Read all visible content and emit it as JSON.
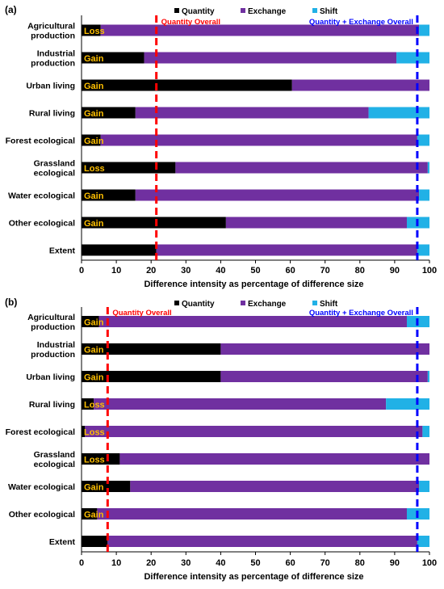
{
  "legend": {
    "quantity_label": "Quantity",
    "exchange_label": "Exchange",
    "shift_label": "Shift"
  },
  "colors": {
    "quantity": "#000000",
    "exchange": "#7030a0",
    "shift": "#21b1e6",
    "quantity_overall_line": "#ff0000",
    "qe_overall_line": "#0000ff",
    "bar_label_text": "#ffc000"
  },
  "chart_data": [
    {
      "panel_label": "(a)",
      "type": "bar",
      "orientation": "horizontal",
      "stacked": true,
      "xlabel": "Difference intensity as percentage of difference size",
      "xlim": [
        0,
        100
      ],
      "xticks": [
        "0",
        "10",
        "20",
        "30",
        "40",
        "50",
        "60",
        "70",
        "80",
        "90",
        "100"
      ],
      "categories": [
        "Agricultural production",
        "Industrial production",
        "Urban living",
        "Rural living",
        "Forest ecological",
        "Grassland ecological",
        "Water ecological",
        "Other ecological",
        "Extent"
      ],
      "bar_labels": [
        "Loss",
        "Gain",
        "Gain",
        "Gain",
        "Gain",
        "Loss",
        "Gain",
        "Gain",
        ""
      ],
      "series": [
        {
          "name": "Quantity",
          "values": [
            5.5,
            18,
            60.5,
            15.5,
            5.5,
            27,
            15.5,
            41.5,
            21.5
          ]
        },
        {
          "name": "Exchange",
          "values": [
            91.5,
            72.5,
            39.5,
            67,
            91,
            72.5,
            81.5,
            52,
            75
          ]
        },
        {
          "name": "Shift",
          "values": [
            3,
            9.5,
            0,
            17.5,
            3.5,
            0.5,
            3,
            6.5,
            3.5
          ]
        }
      ],
      "reference_lines": [
        {
          "label": "Quantity Overall",
          "x": 21.5
        },
        {
          "label": "Quantity + Exchange Overall",
          "x": 96.5
        }
      ]
    },
    {
      "panel_label": "(b)",
      "type": "bar",
      "orientation": "horizontal",
      "stacked": true,
      "xlabel": "Difference intensity as percentage of difference size",
      "xlim": [
        0,
        100
      ],
      "xticks": [
        "0",
        "10",
        "20",
        "30",
        "40",
        "50",
        "60",
        "70",
        "80",
        "90",
        "100"
      ],
      "categories": [
        "Agricultural production",
        "Industrial production",
        "Urban living",
        "Rural living",
        "Forest ecological",
        "Grassland ecological",
        "Water ecological",
        "Other ecological",
        "Extent"
      ],
      "bar_labels": [
        "Gain",
        "Gain",
        "Gain",
        "Loss",
        "Loss",
        "Loss",
        "Gain",
        "Gain",
        ""
      ],
      "series": [
        {
          "name": "Quantity",
          "values": [
            5,
            40,
            40,
            3.5,
            1,
            11,
            14,
            4.5,
            7.5
          ]
        },
        {
          "name": "Exchange",
          "values": [
            88.5,
            60,
            59.5,
            84,
            97,
            89,
            83,
            89,
            89
          ]
        },
        {
          "name": "Shift",
          "values": [
            6.5,
            0,
            0.5,
            12.5,
            2,
            0,
            3,
            6.5,
            3.5
          ]
        }
      ],
      "reference_lines": [
        {
          "label": "Quantity Overall",
          "x": 7.5
        },
        {
          "label": "Quantity + Exchange Overall",
          "x": 96.5
        }
      ]
    }
  ]
}
